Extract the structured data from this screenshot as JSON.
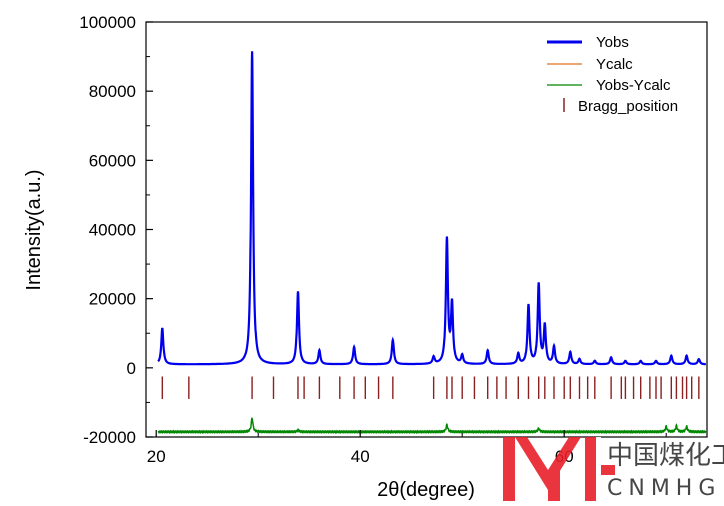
{
  "chart_data": {
    "type": "line",
    "xlabel": "2θ(degree)",
    "ylabel": "Intensity(a.u.)",
    "xlim": [
      19,
      74
    ],
    "ylim": [
      -20000,
      100000
    ],
    "x_ticks": [
      20,
      40,
      60
    ],
    "y_ticks": [
      -20000,
      0,
      20000,
      40000,
      60000,
      80000,
      100000
    ],
    "tick_labels_x": [
      "20",
      "40",
      "60"
    ],
    "tick_labels_y": [
      "-20000",
      "0",
      "20000",
      "40000",
      "60000",
      "80000",
      "100000"
    ],
    "grid": false,
    "legend_position": "top-right",
    "legend": [
      {
        "name": "Yobs",
        "color": "#0000ee",
        "style": "line-thick"
      },
      {
        "name": "Ycalc",
        "color": "#e07020",
        "style": "line"
      },
      {
        "name": "Yobs-Ycalc",
        "color": "#008800",
        "style": "line"
      },
      {
        "name": "Bragg_position",
        "color": "#8b2020",
        "style": "tick"
      }
    ],
    "baseline_obs": 1000,
    "peaks": [
      {
        "x": 20.6,
        "y": 11500
      },
      {
        "x": 29.4,
        "y": 91500
      },
      {
        "x": 33.9,
        "y": 22000
      },
      {
        "x": 36.0,
        "y": 5000
      },
      {
        "x": 39.4,
        "y": 6000
      },
      {
        "x": 43.2,
        "y": 8000
      },
      {
        "x": 47.2,
        "y": 3000
      },
      {
        "x": 48.5,
        "y": 37000
      },
      {
        "x": 49.0,
        "y": 18000
      },
      {
        "x": 50.0,
        "y": 3500
      },
      {
        "x": 52.5,
        "y": 5000
      },
      {
        "x": 55.5,
        "y": 4000
      },
      {
        "x": 56.5,
        "y": 18000
      },
      {
        "x": 57.5,
        "y": 24000
      },
      {
        "x": 58.1,
        "y": 12000
      },
      {
        "x": 59.0,
        "y": 6000
      },
      {
        "x": 60.6,
        "y": 4500
      },
      {
        "x": 61.5,
        "y": 2500
      },
      {
        "x": 63.0,
        "y": 2000
      },
      {
        "x": 64.6,
        "y": 3000
      },
      {
        "x": 66.0,
        "y": 2000
      },
      {
        "x": 67.5,
        "y": 2000
      },
      {
        "x": 69.0,
        "y": 2000
      },
      {
        "x": 70.5,
        "y": 3500
      },
      {
        "x": 72.0,
        "y": 3500
      },
      {
        "x": 73.2,
        "y": 2500
      }
    ],
    "bragg_positions": [
      20.6,
      23.2,
      29.4,
      31.5,
      33.9,
      34.5,
      36.0,
      38.0,
      39.4,
      40.5,
      41.8,
      43.2,
      47.2,
      48.5,
      49.0,
      50.0,
      51.2,
      52.5,
      53.4,
      54.3,
      55.5,
      56.5,
      57.5,
      58.1,
      59.0,
      60.0,
      60.6,
      61.5,
      62.3,
      63.0,
      64.6,
      65.6,
      66.0,
      66.8,
      67.5,
      68.4,
      69.0,
      69.5,
      70.5,
      71.0,
      71.6,
      72.0,
      72.5,
      73.2
    ],
    "diff_spikes": [
      {
        "x": 29.4,
        "y": -14500
      },
      {
        "x": 33.9,
        "y": -18000
      },
      {
        "x": 48.5,
        "y": -16500
      },
      {
        "x": 57.5,
        "y": -17500
      },
      {
        "x": 70.0,
        "y": -17000
      },
      {
        "x": 71.0,
        "y": -16800
      },
      {
        "x": 72.0,
        "y": -17000
      }
    ],
    "diff_baseline": -18500,
    "bragg_row_y": [
      -9000,
      -2500
    ]
  },
  "logo": {
    "cn": "中国煤化工",
    "en": "CNMHG"
  }
}
